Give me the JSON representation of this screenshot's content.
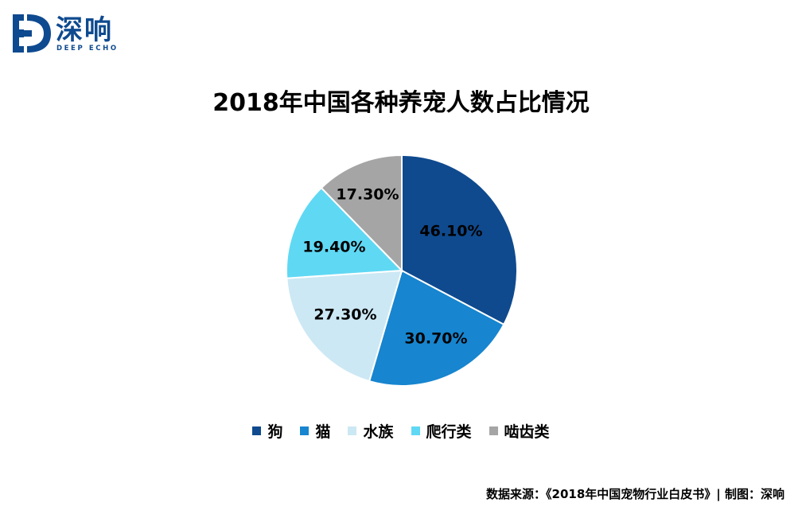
{
  "brand": {
    "logo_cn": "深响",
    "logo_en": "DEEP ECHO",
    "color": "#0e4a8f"
  },
  "title": "2018年中国各种养宠人数占比情况",
  "chart_data": {
    "type": "pie",
    "title": "2018年中国各种养宠人数占比情况",
    "categories": [
      "狗",
      "猫",
      "水族",
      "爬行类",
      "啮齿类"
    ],
    "values": [
      46.1,
      30.7,
      27.3,
      19.4,
      17.3
    ],
    "labels": [
      "46.10%",
      "30.70%",
      "27.30%",
      "19.40%",
      "17.30%"
    ],
    "colors": [
      "#0f4a8e",
      "#1785cf",
      "#cce8f4",
      "#5fd8f4",
      "#a5a5a5"
    ],
    "start_angle": "12 o'clock",
    "direction": "clockwise",
    "legend_position": "bottom"
  },
  "legend": {
    "items": [
      {
        "label": "狗",
        "color": "#0f4a8e"
      },
      {
        "label": "猫",
        "color": "#1785cf"
      },
      {
        "label": "水族",
        "color": "#cce8f4"
      },
      {
        "label": "爬行类",
        "color": "#5fd8f4"
      },
      {
        "label": "啮齿类",
        "color": "#a5a5a5"
      }
    ]
  },
  "source": "数据来源：《2018年中国宠物行业白皮书》| 制图：深响"
}
